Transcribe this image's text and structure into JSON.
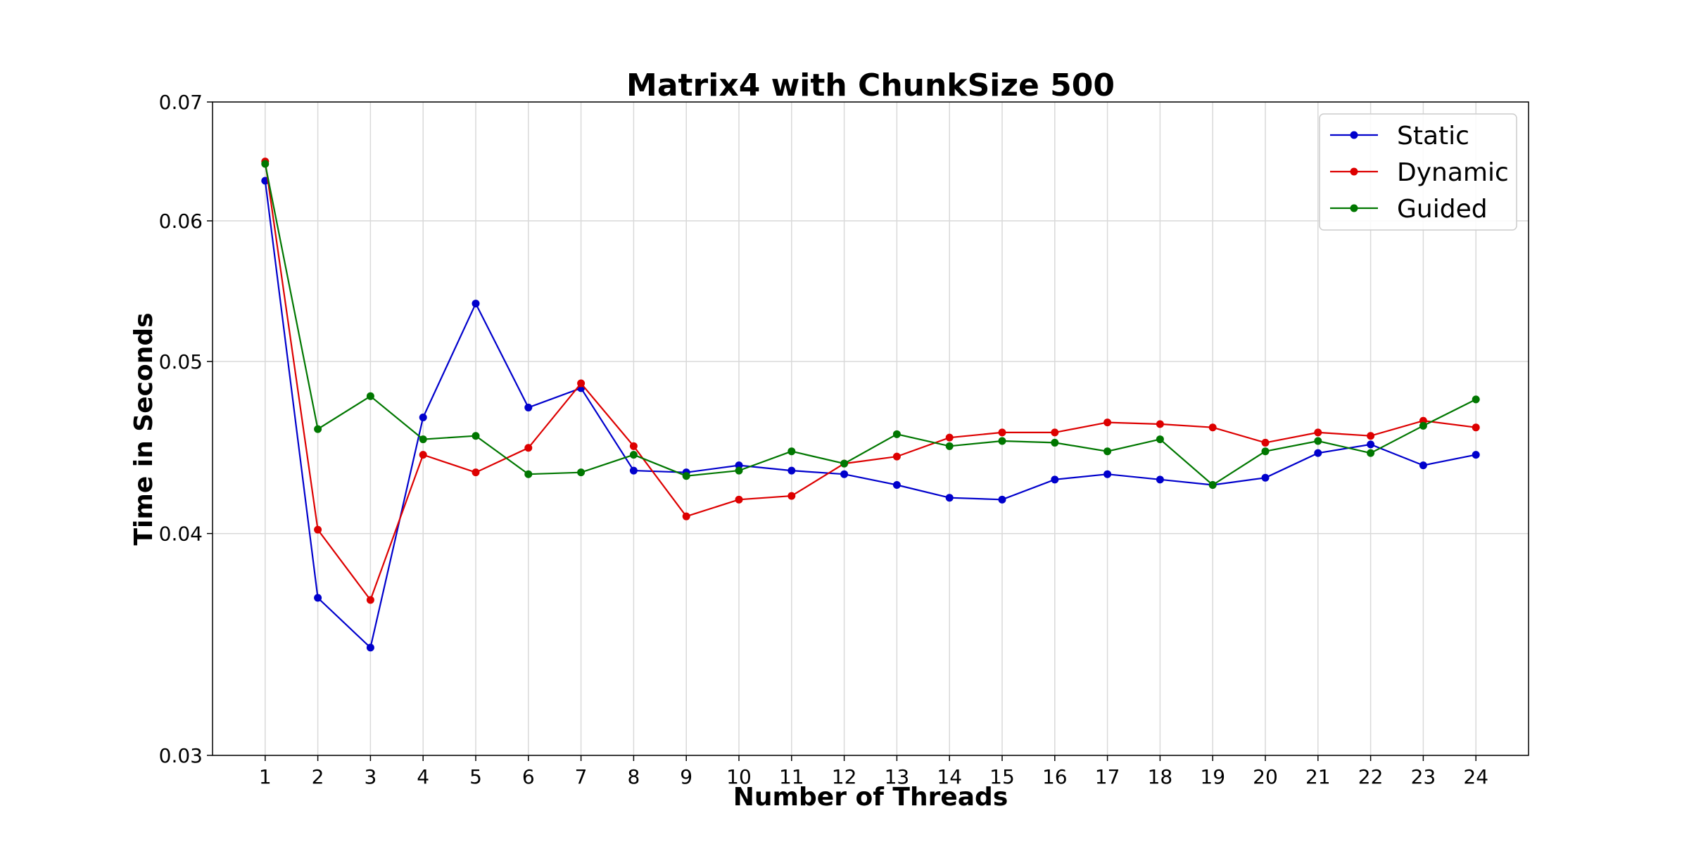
{
  "chart_data": {
    "type": "line",
    "title": "Matrix4 with ChunkSize 500",
    "xlabel": "Number of Threads",
    "ylabel": "Time in Seconds",
    "y_scale": "log",
    "ylim": [
      0.03,
      0.07
    ],
    "yticks": [
      0.03,
      0.04,
      0.05,
      0.06,
      0.07
    ],
    "ytick_labels": [
      "0.03",
      "0.04",
      "0.05",
      "0.06",
      "0.07"
    ],
    "xlim": [
      0,
      25
    ],
    "x": [
      1,
      2,
      3,
      4,
      5,
      6,
      7,
      8,
      9,
      10,
      11,
      12,
      13,
      14,
      15,
      16,
      17,
      18,
      19,
      20,
      21,
      22,
      23,
      24
    ],
    "grid": true,
    "legend_position": "top-right",
    "series": [
      {
        "name": "Static",
        "color": "#0000cc",
        "values": [
          0.0632,
          0.0368,
          0.0345,
          0.0465,
          0.0539,
          0.0471,
          0.0483,
          0.0434,
          0.0433,
          0.0437,
          0.0434,
          0.0432,
          0.0426,
          0.0419,
          0.0418,
          0.0429,
          0.0432,
          0.0429,
          0.0426,
          0.043,
          0.0444,
          0.0449,
          0.0437,
          0.0443
        ]
      },
      {
        "name": "Dynamic",
        "color": "#dd0000",
        "values": [
          0.0648,
          0.0402,
          0.0367,
          0.0443,
          0.0433,
          0.0447,
          0.0486,
          0.0448,
          0.0409,
          0.0418,
          0.042,
          0.0438,
          0.0442,
          0.0453,
          0.0456,
          0.0456,
          0.0462,
          0.0461,
          0.0459,
          0.045,
          0.0456,
          0.0454,
          0.0463,
          0.0459
        ]
      },
      {
        "name": "Guided",
        "color": "#007700",
        "values": [
          0.0646,
          0.0458,
          0.0478,
          0.0452,
          0.0454,
          0.0432,
          0.0433,
          0.0443,
          0.0431,
          0.0434,
          0.0445,
          0.0438,
          0.0455,
          0.0448,
          0.0451,
          0.045,
          0.0445,
          0.0452,
          0.0426,
          0.0445,
          0.0451,
          0.0444,
          0.046,
          0.0476
        ]
      }
    ]
  }
}
